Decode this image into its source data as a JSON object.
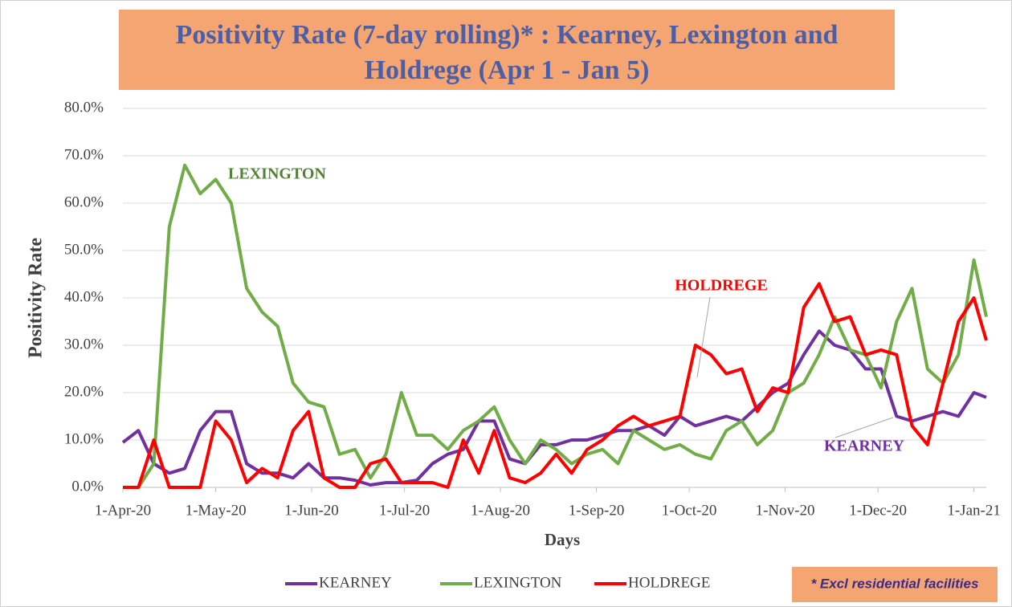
{
  "chart_data": {
    "type": "line",
    "title": "Positivity Rate (7-day rolling)* : Kearney, Lexington and Holdrege (Apr 1 - Jan 5)",
    "x_label": "Days",
    "y_label": "Positivity Rate",
    "note": "* Excl residential facilities",
    "x": [
      "2020-04-01",
      "2020-04-06",
      "2020-04-11",
      "2020-04-16",
      "2020-04-21",
      "2020-04-26",
      "2020-05-01",
      "2020-05-06",
      "2020-05-11",
      "2020-05-16",
      "2020-05-21",
      "2020-05-26",
      "2020-05-31",
      "2020-06-05",
      "2020-06-10",
      "2020-06-15",
      "2020-06-20",
      "2020-06-25",
      "2020-06-30",
      "2020-07-05",
      "2020-07-10",
      "2020-07-15",
      "2020-07-20",
      "2020-07-25",
      "2020-07-30",
      "2020-08-04",
      "2020-08-09",
      "2020-08-14",
      "2020-08-19",
      "2020-08-24",
      "2020-08-29",
      "2020-09-03",
      "2020-09-08",
      "2020-09-13",
      "2020-09-18",
      "2020-09-23",
      "2020-09-28",
      "2020-10-03",
      "2020-10-08",
      "2020-10-13",
      "2020-10-18",
      "2020-10-23",
      "2020-10-28",
      "2020-11-02",
      "2020-11-07",
      "2020-11-12",
      "2020-11-17",
      "2020-11-22",
      "2020-11-27",
      "2020-12-02",
      "2020-12-07",
      "2020-12-12",
      "2020-12-17",
      "2020-12-22",
      "2020-12-27",
      "2021-01-01",
      "2021-01-05"
    ],
    "series": [
      {
        "name": "KEARNEY",
        "color": "#7030a0",
        "values": [
          9.5,
          12,
          5,
          3,
          4,
          12,
          16,
          16,
          5,
          3,
          3,
          2,
          5,
          2,
          2,
          1.5,
          0.5,
          1,
          1,
          1.5,
          5,
          7,
          8,
          14,
          14,
          6,
          5,
          9,
          9,
          10,
          10,
          11,
          12,
          12,
          13,
          11,
          15,
          13,
          14,
          15,
          14,
          17,
          20,
          22,
          28,
          33,
          30,
          29,
          25,
          25,
          15,
          14,
          15,
          16,
          15,
          20,
          19
        ]
      },
      {
        "name": "LEXINGTON",
        "color": "#70ad47",
        "values": [
          0,
          0,
          5,
          55,
          68,
          62,
          65,
          60,
          42,
          37,
          34,
          22,
          18,
          17,
          7,
          8,
          2,
          7,
          20,
          11,
          11,
          8,
          12,
          14,
          17,
          10,
          5,
          10,
          8,
          5,
          7,
          8,
          5,
          12,
          10,
          8,
          9,
          7,
          6,
          12,
          14,
          9,
          12,
          20,
          22,
          28,
          36,
          29,
          28,
          21,
          35,
          42,
          25,
          22,
          28,
          48,
          36
        ]
      },
      {
        "name": "HOLDREGE",
        "color": "#ff0000",
        "values": [
          0,
          0,
          10,
          0,
          0,
          0,
          14,
          10,
          1,
          4,
          2,
          12,
          16,
          2,
          0,
          0,
          5,
          6,
          1,
          1,
          1,
          0,
          10,
          3,
          12,
          2,
          1,
          3,
          7,
          3,
          8,
          10,
          13,
          15,
          13,
          14,
          15,
          30,
          28,
          24,
          25,
          16,
          21,
          20,
          38,
          43,
          35,
          36,
          28,
          29,
          28,
          13,
          9,
          22,
          35,
          40,
          31
        ]
      }
    ],
    "xlim": [
      "2020-04-01",
      "2021-01-05"
    ],
    "xticks": [
      {
        "value": "2020-04-01",
        "label": "1-Apr-20"
      },
      {
        "value": "2020-05-01",
        "label": "1-May-20"
      },
      {
        "value": "2020-06-01",
        "label": "1-Jun-20"
      },
      {
        "value": "2020-07-01",
        "label": "1-Jul-20"
      },
      {
        "value": "2020-08-01",
        "label": "1-Aug-20"
      },
      {
        "value": "2020-09-01",
        "label": "1-Sep-20"
      },
      {
        "value": "2020-10-01",
        "label": "1-Oct-20"
      },
      {
        "value": "2020-11-01",
        "label": "1-Nov-20"
      },
      {
        "value": "2020-12-01",
        "label": "1-Dec-20"
      },
      {
        "value": "2021-01-01",
        "label": "1-Jan-21"
      }
    ],
    "ylim": [
      0,
      80
    ],
    "yticks": [
      {
        "value": 0,
        "label": "0.0%"
      },
      {
        "value": 10,
        "label": "10.0%"
      },
      {
        "value": 20,
        "label": "20.0%"
      },
      {
        "value": 30,
        "label": "30.0%"
      },
      {
        "value": 40,
        "label": "40.0%"
      },
      {
        "value": 50,
        "label": "50.0%"
      },
      {
        "value": 60,
        "label": "60.0%"
      },
      {
        "value": 70,
        "label": "70.0%"
      },
      {
        "value": 80,
        "label": "80.0%"
      }
    ],
    "grid": true,
    "annotations": [
      {
        "text": "LEXINGTON",
        "color": "#548235"
      },
      {
        "text": "HOLDREGE",
        "color": "#ff0000"
      },
      {
        "text": "KEARNEY",
        "color": "#7030a0"
      }
    ],
    "title_color": "#4a5fa8",
    "title_box_color": "#f4a572"
  }
}
